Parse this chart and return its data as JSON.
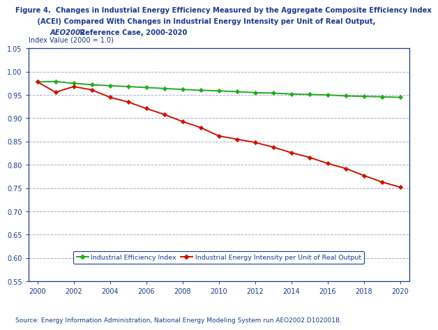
{
  "title_bold": "Figure 4.  Changes in Industrial Energy Efficiency Measured by the Aggregate Composite Efficiency Index",
  "title_line2": "         (ACEI) Compared With Changes in Industrial Energy Intensity per Unit of Real Output,",
  "title_italic": "AEO2002",
  "title_line3_rest": " Reference Case, 2000-2020",
  "title_line3_indent": "         ",
  "ylabel": "Index Value (2000 = 1.0)",
  "source": "Source: Energy Information Administration, National Energy Modeling System run AEO2002.D102001B.",
  "title_color": "#1a3a8c",
  "grid_color": "#aaaacc",
  "years": [
    2000,
    2001,
    2002,
    2003,
    2004,
    2005,
    2006,
    2007,
    2008,
    2009,
    2010,
    2011,
    2012,
    2013,
    2014,
    2015,
    2016,
    2017,
    2018,
    2019,
    2020
  ],
  "efficiency_index": [
    0.978,
    0.979,
    0.975,
    0.972,
    0.97,
    0.968,
    0.966,
    0.964,
    0.962,
    0.96,
    0.959,
    0.957,
    0.955,
    0.954,
    0.952,
    0.951,
    0.95,
    0.948,
    0.947,
    0.946,
    0.945
  ],
  "energy_intensity": [
    0.978,
    0.956,
    0.968,
    0.961,
    0.945,
    0.935,
    0.921,
    0.908,
    0.893,
    0.88,
    0.862,
    0.855,
    0.848,
    0.838,
    0.826,
    0.816,
    0.803,
    0.792,
    0.777,
    0.763,
    0.752
  ],
  "green_color": "#22aa22",
  "red_color": "#cc1100",
  "ylim": [
    0.55,
    1.05
  ],
  "yticks": [
    0.55,
    0.6,
    0.65,
    0.7,
    0.75,
    0.8,
    0.85,
    0.9,
    0.95,
    1.0,
    1.05
  ],
  "xticks": [
    2000,
    2002,
    2004,
    2006,
    2008,
    2010,
    2012,
    2014,
    2016,
    2018,
    2020
  ],
  "legend_label1": "Industrial Efficiency Index",
  "legend_label2": "Industrial Energy Intensity per Unit of Real Output"
}
